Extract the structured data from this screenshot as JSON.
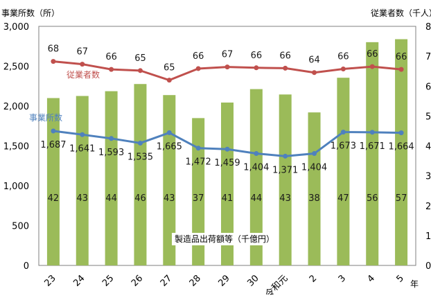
{
  "chart_data": {
    "type": "bar",
    "categories": [
      "23",
      "24",
      "25",
      "26",
      "27",
      "28",
      "29",
      "30",
      "令和元",
      "2",
      "3",
      "4",
      "5"
    ],
    "x_unit": "年",
    "left_axis_title": "事業所数（所）",
    "right_axis_title": "従業者数（千人）",
    "left_ticks": [
      "3,000",
      "2,500",
      "2,000",
      "1,500",
      "1,000",
      "500",
      "0"
    ],
    "right_ticks": [
      "8",
      "7",
      "6",
      "5",
      "4",
      "3",
      "2",
      "1",
      "0"
    ],
    "left_range": [
      0,
      3000
    ],
    "right_range": [
      0,
      80
    ],
    "grid": false,
    "colors": {
      "bar": "#9bbb59",
      "establishments": "#4f81bd",
      "employees": "#c0504d"
    },
    "series": [
      {
        "name": "製造品出荷額等（千億円）",
        "type": "bar",
        "axis": "right",
        "values": [
          56,
          56.7,
          58.3,
          60.7,
          57,
          49.3,
          54.5,
          59,
          57.2,
          51.2,
          62.8,
          74.7,
          75.7
        ],
        "labels": [
          "42",
          "43",
          "44",
          "46",
          "43",
          "37",
          "41",
          "44",
          "43",
          "38",
          "47",
          "56",
          "57"
        ]
      },
      {
        "name": "事業所数",
        "type": "line",
        "axis": "left",
        "values": [
          1687,
          1641,
          1593,
          1535,
          1665,
          1472,
          1459,
          1404,
          1371,
          1404,
          1673,
          1671,
          1664
        ],
        "labels": [
          "1,687",
          "1,641",
          "1,593",
          "1,535",
          "1,665",
          "1,472",
          "1,459",
          "1,404",
          "1,371",
          "1,404",
          "1,673",
          "1,671",
          "1,664"
        ]
      },
      {
        "name": "従業者数",
        "type": "line",
        "axis": "left",
        "values": [
          2560,
          2525,
          2460,
          2445,
          2325,
          2470,
          2490,
          2480,
          2475,
          2420,
          2465,
          2495,
          2460
        ],
        "labels": [
          "68",
          "67",
          "66",
          "65",
          "65",
          "66",
          "67",
          "66",
          "66",
          "64",
          "66",
          "66",
          "66"
        ]
      }
    ]
  }
}
